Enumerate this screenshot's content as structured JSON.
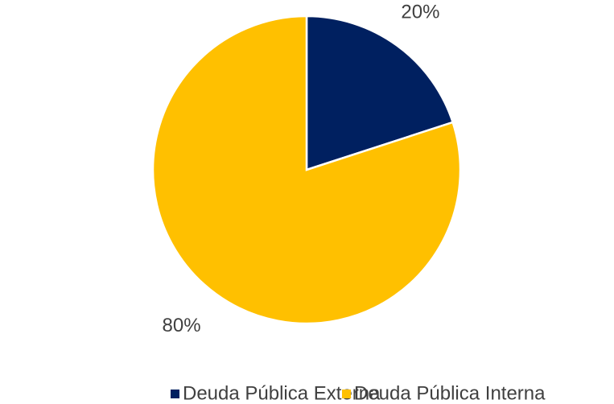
{
  "chart_data": {
    "type": "pie",
    "categories": [
      "Deuda Pública Externa",
      "Deuda Pública Interna"
    ],
    "values": [
      20,
      80
    ],
    "value_labels": [
      "20%",
      "80%"
    ],
    "colors": [
      "#002060",
      "#FFC000"
    ],
    "legend": "bottom"
  }
}
